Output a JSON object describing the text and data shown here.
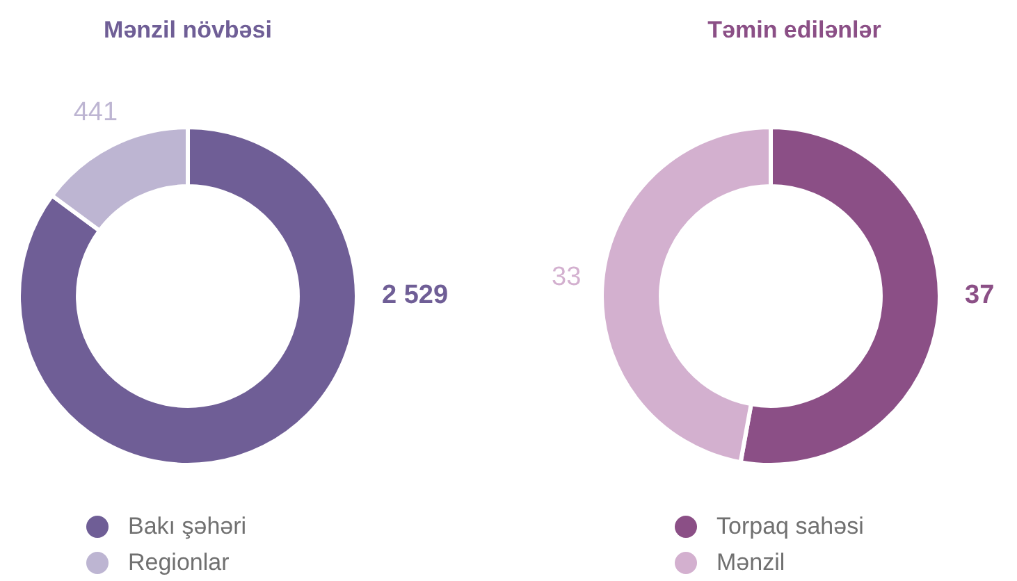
{
  "chart_data": [
    {
      "type": "donut",
      "title": "Mənzil növbəsi",
      "categories": [
        "Bakı şəhəri",
        "Regionlar"
      ],
      "values": [
        2529,
        441
      ],
      "colors": [
        "#6f5e96",
        "#bdb5d2"
      ],
      "value_labels": [
        "2 529",
        "441"
      ],
      "legend": "bottom"
    },
    {
      "type": "donut",
      "title": "Təmin edilənlər",
      "categories": [
        "Torpaq sahəsi",
        "Mənzil"
      ],
      "values": [
        37,
        33
      ],
      "colors": [
        "#8b4f86",
        "#d3b0cf"
      ],
      "value_labels": [
        "37",
        "33"
      ],
      "legend": "bottom"
    }
  ]
}
